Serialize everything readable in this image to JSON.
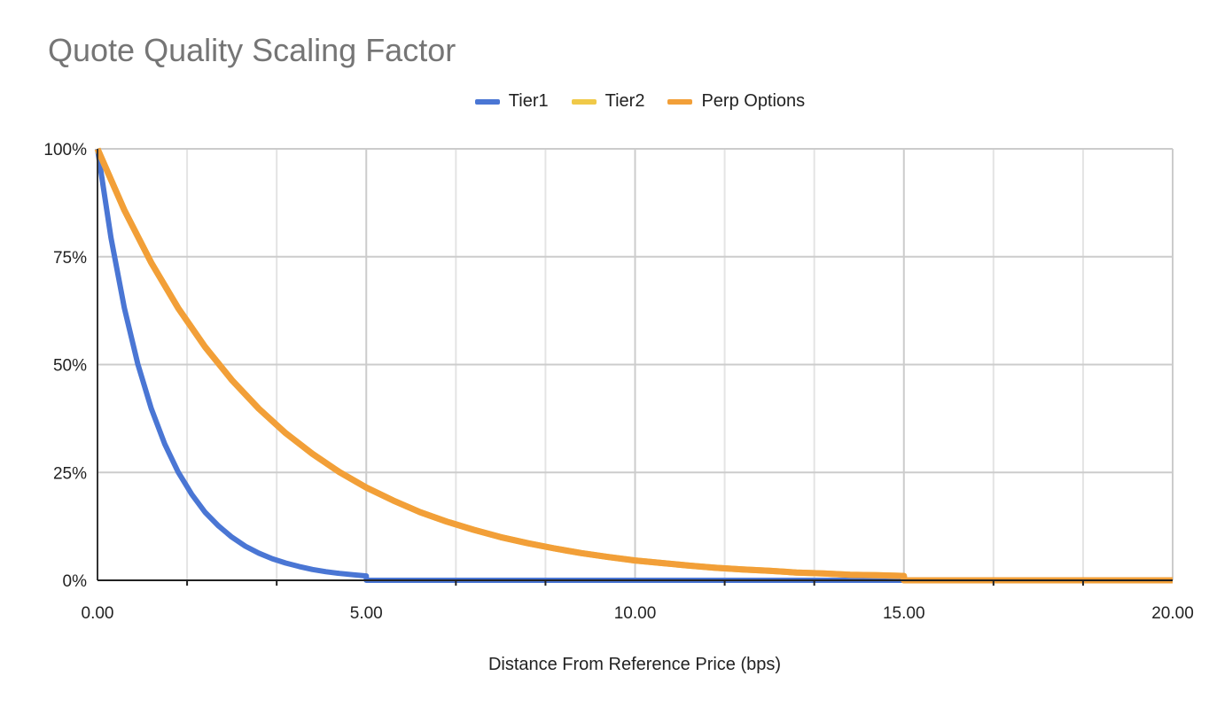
{
  "chart_data": {
    "type": "line",
    "title": "Quote Quality Scaling Factor",
    "xlabel": "Distance From Reference Price (bps)",
    "ylabel": "",
    "xlim": [
      0,
      20
    ],
    "ylim": [
      0,
      100
    ],
    "x_ticks": [
      "0.00",
      "5.00",
      "10.00",
      "15.00",
      "20.00"
    ],
    "y_ticks": [
      "0%",
      "25%",
      "50%",
      "75%",
      "100%"
    ],
    "grid": true,
    "legend": "top-center",
    "series": [
      {
        "name": "Tier1",
        "color": "#4a76d4",
        "points": [
          [
            0,
            100
          ],
          [
            0.25,
            79.4
          ],
          [
            0.5,
            63.1
          ],
          [
            0.75,
            50.1
          ],
          [
            1,
            39.8
          ],
          [
            1.25,
            31.6
          ],
          [
            1.5,
            25.1
          ],
          [
            1.75,
            20.0
          ],
          [
            2,
            15.8
          ],
          [
            2.25,
            12.6
          ],
          [
            2.5,
            10.0
          ],
          [
            2.75,
            7.9
          ],
          [
            3,
            6.3
          ],
          [
            3.25,
            5.0
          ],
          [
            3.5,
            4.0
          ],
          [
            3.75,
            3.2
          ],
          [
            4,
            2.5
          ],
          [
            4.25,
            2.0
          ],
          [
            4.5,
            1.6
          ],
          [
            4.75,
            1.3
          ],
          [
            5,
            1.0
          ],
          [
            5,
            0
          ],
          [
            20,
            0
          ]
        ]
      },
      {
        "name": "Tier2",
        "color": "#f0c948",
        "points": [
          [
            0,
            100
          ],
          [
            0.5,
            85.8
          ],
          [
            1,
            73.6
          ],
          [
            1.5,
            63.1
          ],
          [
            2,
            54.1
          ],
          [
            2.5,
            46.4
          ],
          [
            3,
            39.8
          ],
          [
            3.5,
            34.1
          ],
          [
            4,
            29.3
          ],
          [
            4.5,
            25.1
          ],
          [
            5,
            21.5
          ],
          [
            5.5,
            18.5
          ],
          [
            6,
            15.8
          ],
          [
            6.5,
            13.6
          ],
          [
            7,
            11.7
          ],
          [
            7.5,
            10.0
          ],
          [
            8,
            8.6
          ],
          [
            8.5,
            7.4
          ],
          [
            9,
            6.3
          ],
          [
            9.5,
            5.4
          ],
          [
            10,
            4.6
          ],
          [
            10.5,
            4.0
          ],
          [
            11,
            3.4
          ],
          [
            11.5,
            2.9
          ],
          [
            12,
            2.5
          ],
          [
            12.5,
            2.2
          ],
          [
            13,
            1.8
          ],
          [
            13.5,
            1.6
          ],
          [
            14,
            1.3
          ],
          [
            14.5,
            1.2
          ],
          [
            15,
            1.0
          ],
          [
            15,
            0
          ],
          [
            20,
            0
          ]
        ]
      },
      {
        "name": "Perp Options",
        "color": "#f29f38",
        "points": [
          [
            0,
            100
          ],
          [
            0.5,
            85.8
          ],
          [
            1,
            73.6
          ],
          [
            1.5,
            63.1
          ],
          [
            2,
            54.1
          ],
          [
            2.5,
            46.4
          ],
          [
            3,
            39.8
          ],
          [
            3.5,
            34.1
          ],
          [
            4,
            29.3
          ],
          [
            4.5,
            25.1
          ],
          [
            5,
            21.5
          ],
          [
            5.5,
            18.5
          ],
          [
            6,
            15.8
          ],
          [
            6.5,
            13.6
          ],
          [
            7,
            11.7
          ],
          [
            7.5,
            10.0
          ],
          [
            8,
            8.6
          ],
          [
            8.5,
            7.4
          ],
          [
            9,
            6.3
          ],
          [
            9.5,
            5.4
          ],
          [
            10,
            4.6
          ],
          [
            10.5,
            4.0
          ],
          [
            11,
            3.4
          ],
          [
            11.5,
            2.9
          ],
          [
            12,
            2.5
          ],
          [
            12.5,
            2.2
          ],
          [
            13,
            1.8
          ],
          [
            13.5,
            1.6
          ],
          [
            14,
            1.3
          ],
          [
            14.5,
            1.2
          ],
          [
            15,
            1.0
          ],
          [
            15,
            0
          ],
          [
            20,
            0
          ]
        ]
      }
    ]
  }
}
